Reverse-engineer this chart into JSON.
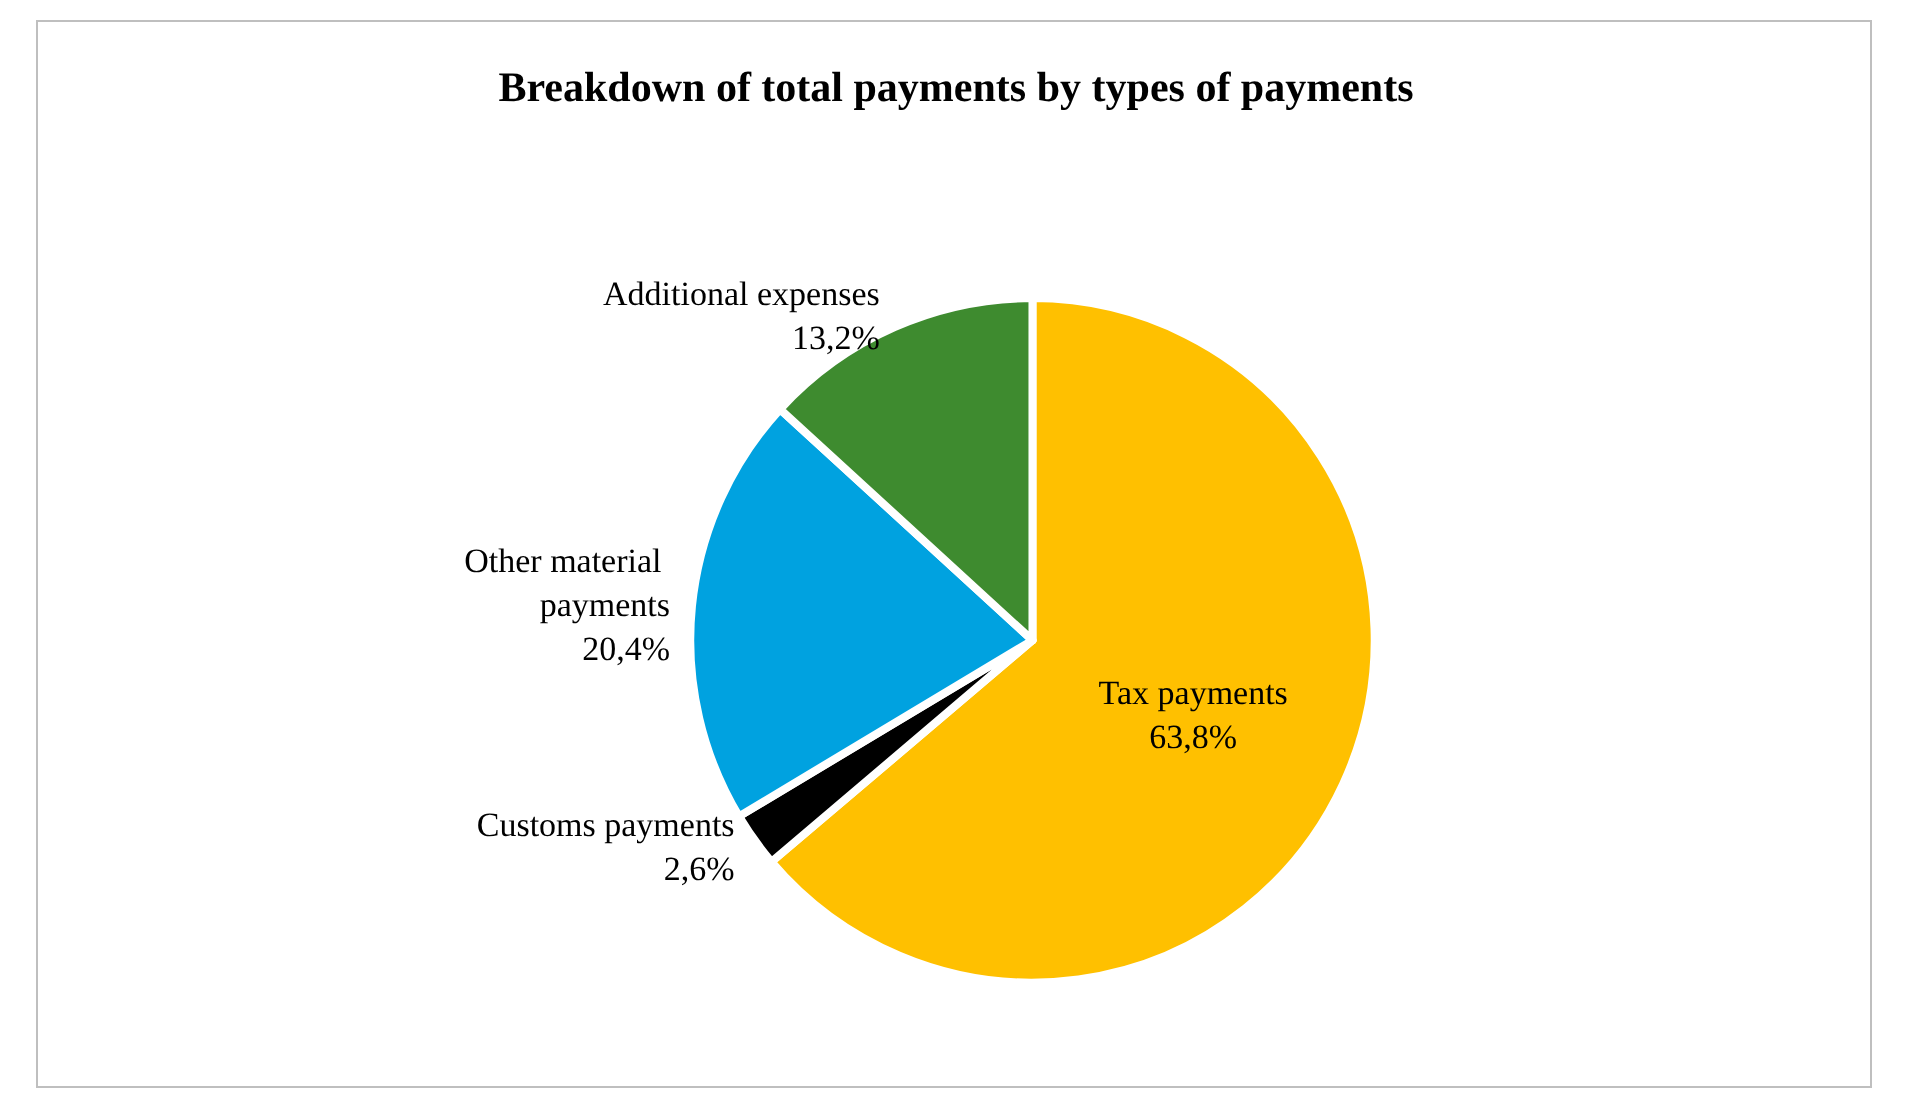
{
  "chart_data": {
    "type": "pie",
    "title": "Breakdown of total payments by types of payments",
    "categories": [
      "Tax payments",
      "Customs payments",
      "Other material payments",
      "Additional expenses"
    ],
    "values": [
      63.8,
      2.6,
      20.4,
      13.2
    ],
    "value_labels": [
      "63,8%",
      "2,6%",
      "20,4%",
      "13,2%"
    ],
    "colors": [
      "#ffc000",
      "#000000",
      "#00a2e0",
      "#3e8b2f"
    ],
    "legend": false
  }
}
